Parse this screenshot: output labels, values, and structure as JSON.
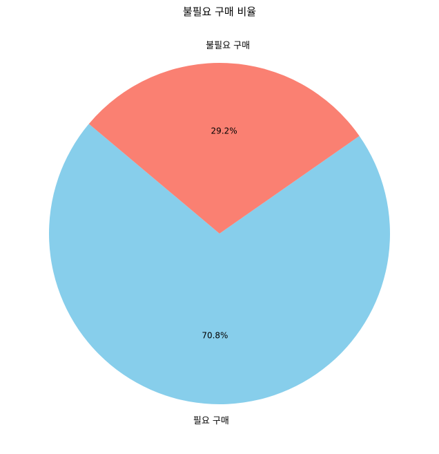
{
  "chart_data": {
    "type": "pie",
    "title": "불필요 구매 비율",
    "slices": [
      {
        "label": "필요 구매",
        "value": 70.8,
        "pct_label": "70.8%",
        "color": "#87CEEB"
      },
      {
        "label": "불필요 구매",
        "value": 29.2,
        "pct_label": "29.2%",
        "color": "#FA8072"
      }
    ],
    "start_angle_deg": 140,
    "direction": "counterclockwise"
  }
}
